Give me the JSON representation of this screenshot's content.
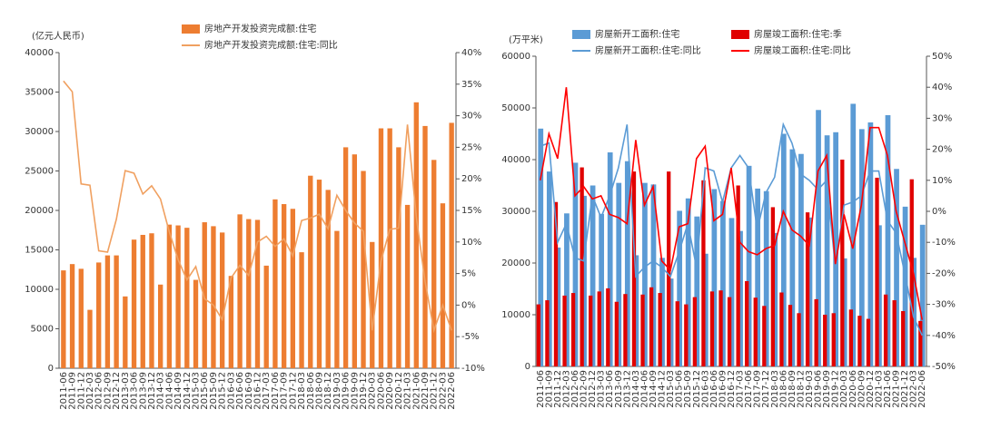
{
  "chart_data": [
    {
      "type": "bar-line",
      "y_label": "(亿元人民币)",
      "categories": [
        "2011-06",
        "2011-09",
        "2011-12",
        "2012-03",
        "2012-06",
        "2012-09",
        "2012-12",
        "2013-03",
        "2013-06",
        "2013-09",
        "2013-12",
        "2014-03",
        "2014-06",
        "2014-09",
        "2014-12",
        "2015-03",
        "2015-06",
        "2015-09",
        "2015-12",
        "2016-03",
        "2016-06",
        "2016-09",
        "2016-12",
        "2017-03",
        "2017-06",
        "2017-09",
        "2017-12",
        "2018-03",
        "2018-06",
        "2018-09",
        "2018-12",
        "2019-03",
        "2019-06",
        "2019-09",
        "2019-12",
        "2020-03",
        "2020-06",
        "2020-09",
        "2020-12",
        "2021-03",
        "2021-06",
        "2021-09",
        "2021-12",
        "2022-03",
        "2022-06"
      ],
      "series": [
        {
          "name": "房地产开发投资完成额:住宅",
          "kind": "bar",
          "color": "#ed7d31",
          "values": [
            12400,
            13200,
            12600,
            7400,
            13400,
            14300,
            14300,
            9100,
            16300,
            16900,
            17100,
            10600,
            18200,
            18100,
            17800,
            11200,
            18500,
            18000,
            17200,
            11700,
            19500,
            18900,
            18800,
            13000,
            21400,
            20800,
            20200,
            14700,
            24400,
            23900,
            22600,
            17400,
            28000,
            27100,
            25000,
            16000,
            30400,
            30400,
            28000,
            20700,
            33700,
            30700,
            26400,
            20900,
            31100
          ]
        },
        {
          "name": "房地产开发投资完成额:住宅:同比",
          "kind": "line",
          "axis": "y2",
          "color": "#f0a060",
          "values": [
            35.5,
            33.8,
            19.2,
            19,
            8.6,
            8.4,
            13.6,
            21.3,
            20.9,
            17.6,
            18.9,
            16.8,
            11.6,
            7.2,
            4,
            6.1,
            1,
            0,
            -2.3,
            4.3,
            6.3,
            4.7,
            10,
            10.9,
            9.3,
            10.5,
            7.8,
            13.4,
            13.8,
            14.4,
            12.1,
            17.4,
            15,
            13,
            11.7,
            -4,
            7,
            12,
            12.2,
            28.6,
            14,
            3.7,
            -4,
            0,
            -4
          ]
        }
      ],
      "ylim": [
        0,
        40000
      ],
      "yticks": [
        0,
        5000,
        10000,
        15000,
        20000,
        25000,
        30000,
        35000,
        40000
      ],
      "y2lim": [
        -10,
        40
      ],
      "y2ticks": [
        {
          "value": -10,
          "label": "-10%"
        },
        {
          "value": -5,
          "label": "-5%"
        },
        {
          "value": 0,
          "label": "0%"
        },
        {
          "value": 5,
          "label": "5%"
        },
        {
          "value": 10,
          "label": "10%"
        },
        {
          "value": 15,
          "label": "15%"
        },
        {
          "value": 20,
          "label": "20%"
        },
        {
          "value": 25,
          "label": "25%"
        },
        {
          "value": 30,
          "label": "30%"
        },
        {
          "value": 35,
          "label": "35%"
        },
        {
          "value": 40,
          "label": "40%"
        }
      ]
    },
    {
      "type": "bar-line",
      "y_label": "(万平米)",
      "categories": [
        "2011-06",
        "2011-09",
        "2011-12",
        "2012-03",
        "2012-06",
        "2012-09",
        "2012-12",
        "2013-03",
        "2013-06",
        "2013-09",
        "2013-12",
        "2014-03",
        "2014-06",
        "2014-09",
        "2014-12",
        "2015-03",
        "2015-06",
        "2015-09",
        "2015-12",
        "2016-03",
        "2016-06",
        "2016-09",
        "2016-12",
        "2017-03",
        "2017-06",
        "2017-09",
        "2017-12",
        "2018-03",
        "2018-06",
        "2018-09",
        "2018-12",
        "2019-03",
        "2019-06",
        "2019-09",
        "2019-12",
        "2020-03",
        "2020-06",
        "2020-09",
        "2020-12",
        "2021-03",
        "2021-06",
        "2021-09",
        "2021-12",
        "2022-03",
        "2022-06"
      ],
      "series": [
        {
          "name": "房屋新开工面积:住宅",
          "kind": "bar",
          "color": "#5b9bd5",
          "values": [
            46000,
            37700,
            23000,
            29600,
            39400,
            33000,
            35000,
            29500,
            41400,
            35500,
            39700,
            21500,
            35500,
            35200,
            21000,
            17000,
            30100,
            32500,
            29000,
            21800,
            34300,
            32000,
            28700,
            26200,
            38800,
            34400,
            33900,
            25800,
            45000,
            42000,
            41100,
            28800,
            49600,
            44700,
            45300,
            20900,
            50800,
            45900,
            47200,
            27300,
            48600,
            38200,
            30900,
            21000,
            27400
          ]
        },
        {
          "name": "房屋竣工面积:住宅:季",
          "kind": "bar",
          "color": "#e00000",
          "values": [
            12000,
            12800,
            31800,
            13700,
            14200,
            38500,
            13700,
            14500,
            15100,
            12500,
            14000,
            37700,
            13900,
            15300,
            14200,
            37700,
            12600,
            12000,
            13400,
            36000,
            14500,
            14700,
            13400,
            35000,
            16500,
            13300,
            11700,
            30800,
            14300,
            11900,
            10300,
            29800,
            13000,
            10000,
            10300,
            40000,
            11000,
            9800,
            9200,
            36500,
            13900,
            12800,
            10700,
            36200,
            8800
          ]
        },
        {
          "name": "房屋新开工面积:住宅:同比",
          "kind": "line",
          "axis": "y2",
          "color": "#5b9bd5",
          "values": [
            21,
            22,
            -10,
            -4,
            -15,
            -16,
            5,
            -2,
            5,
            14,
            28,
            -21,
            -18,
            -16,
            -18,
            -21,
            -13,
            -4,
            -18,
            14,
            13,
            3,
            14,
            18,
            14,
            -6,
            6,
            11,
            28,
            22,
            12,
            10,
            7,
            10,
            -18,
            2,
            3,
            5,
            13,
            13,
            -3,
            -7,
            -20,
            -34,
            -40
          ]
        },
        {
          "name": "房屋竣工面积:住宅:同比",
          "kind": "line",
          "axis": "y2",
          "color": "#ff0000",
          "values": [
            10,
            25,
            17,
            40,
            5,
            8,
            4,
            5,
            -1,
            -2,
            -4,
            23,
            2,
            8,
            -16,
            -19,
            -5,
            -4,
            17,
            21,
            -3,
            -1,
            14,
            -10,
            -13,
            -14,
            -12,
            -11,
            0,
            -6,
            -8,
            -11,
            13,
            18,
            -17,
            -1,
            -12,
            2,
            27,
            27,
            18,
            0,
            -10,
            -20,
            -35
          ]
        }
      ],
      "ylim": [
        0,
        60000
      ],
      "yticks": [
        0,
        10000,
        20000,
        30000,
        40000,
        50000,
        60000
      ],
      "y2lim": [
        -50,
        50
      ],
      "y2ticks": [
        {
          "value": -50,
          "label": "-50%"
        },
        {
          "value": -40,
          "label": "-40%"
        },
        {
          "value": -30,
          "label": "-30%"
        },
        {
          "value": -20,
          "label": "-20%"
        },
        {
          "value": -10,
          "label": "-10%"
        },
        {
          "value": 0,
          "label": "0%"
        },
        {
          "value": 10,
          "label": "10%"
        },
        {
          "value": 20,
          "label": "20%"
        },
        {
          "value": 30,
          "label": "30%"
        },
        {
          "value": 40,
          "label": "40%"
        },
        {
          "value": 50,
          "label": "50%"
        }
      ]
    }
  ]
}
